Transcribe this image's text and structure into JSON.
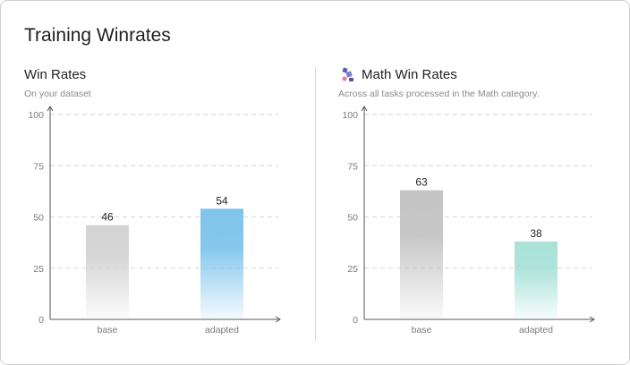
{
  "page": {
    "title": "Training Winrates"
  },
  "panels": [
    {
      "title": "Win Rates",
      "subtitle": "On your dataset",
      "icon": ""
    },
    {
      "title": "Math Win Rates",
      "subtitle": "Across all tasks processed in the Math category.",
      "icon": "math-icon"
    }
  ],
  "chart_data": [
    {
      "type": "bar",
      "title": "Win Rates",
      "subtitle": "On your dataset",
      "categories": [
        "base",
        "adapted"
      ],
      "values": [
        46,
        54
      ],
      "ylim": [
        0,
        100
      ],
      "yticks": [
        0,
        25,
        50,
        75,
        100
      ],
      "grid": true,
      "colors": [
        "#d4d4d4",
        "#7fc4eb"
      ]
    },
    {
      "type": "bar",
      "title": "Math Win Rates",
      "subtitle": "Across all tasks processed in the Math category.",
      "categories": [
        "base",
        "adapted"
      ],
      "values": [
        63,
        38
      ],
      "ylim": [
        0,
        100
      ],
      "yticks": [
        0,
        25,
        50,
        75,
        100
      ],
      "grid": true,
      "colors": [
        "#c4c4c4",
        "#a9e2d8"
      ]
    }
  ]
}
